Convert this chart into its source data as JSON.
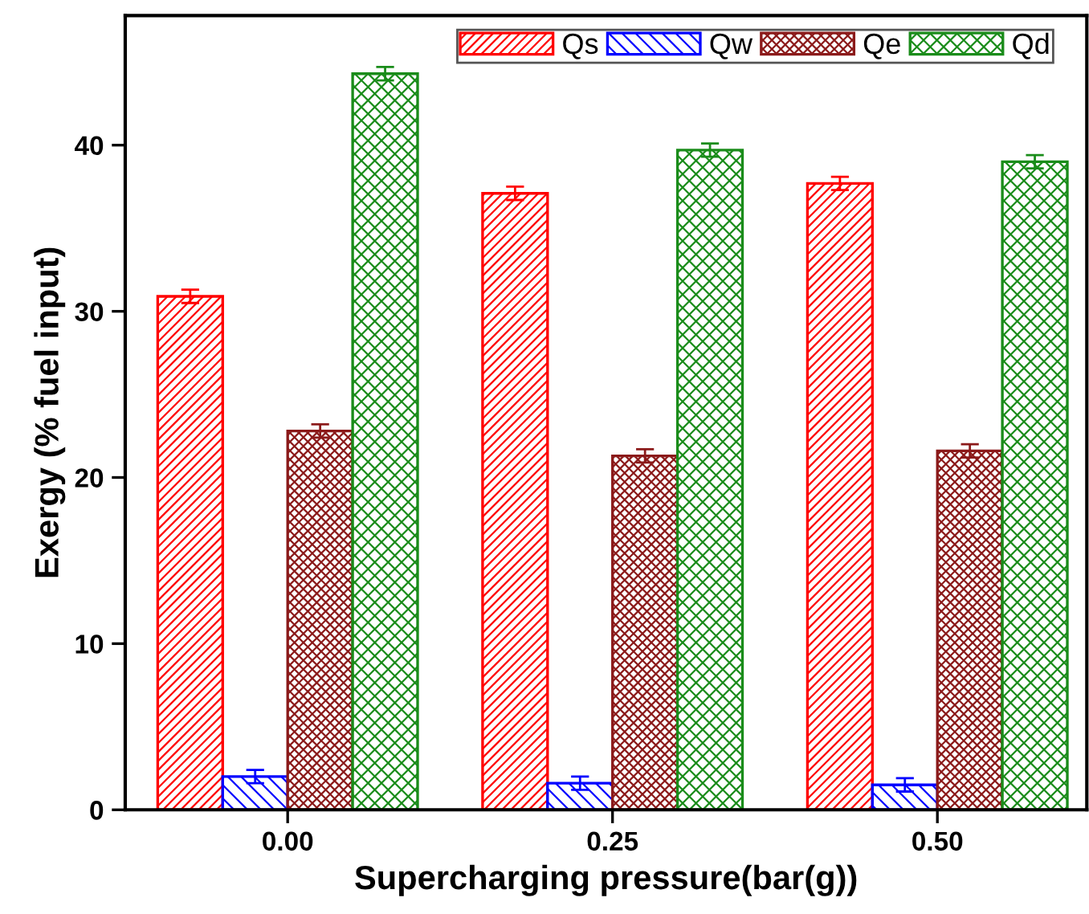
{
  "chart_data": {
    "type": "bar",
    "xlabel": "Supercharging pressure(bar(g))",
    "ylabel": "Exergy (% fuel input)",
    "categories": [
      "0.00",
      "0.25",
      "0.50"
    ],
    "series": [
      {
        "name": "Qs",
        "color": "#ff0000",
        "values": [
          30.9,
          37.1,
          37.7
        ],
        "errors": [
          0.4,
          0.4,
          0.4
        ]
      },
      {
        "name": "Qw",
        "color": "#0000ff",
        "values": [
          2.0,
          1.6,
          1.5
        ],
        "errors": [
          0.4,
          0.4,
          0.4
        ]
      },
      {
        "name": "Qe",
        "color": "#8b1a1a",
        "values": [
          22.8,
          21.3,
          21.6
        ],
        "errors": [
          0.4,
          0.4,
          0.4
        ]
      },
      {
        "name": "Qd",
        "color": "#1a8c1a",
        "values": [
          44.3,
          39.7,
          39.0
        ],
        "errors": [
          0.4,
          0.4,
          0.4
        ]
      }
    ],
    "ylim": [
      0,
      47.8
    ],
    "yticks": [
      0,
      10,
      20,
      30,
      40
    ],
    "grid": false,
    "legend": "top right"
  }
}
